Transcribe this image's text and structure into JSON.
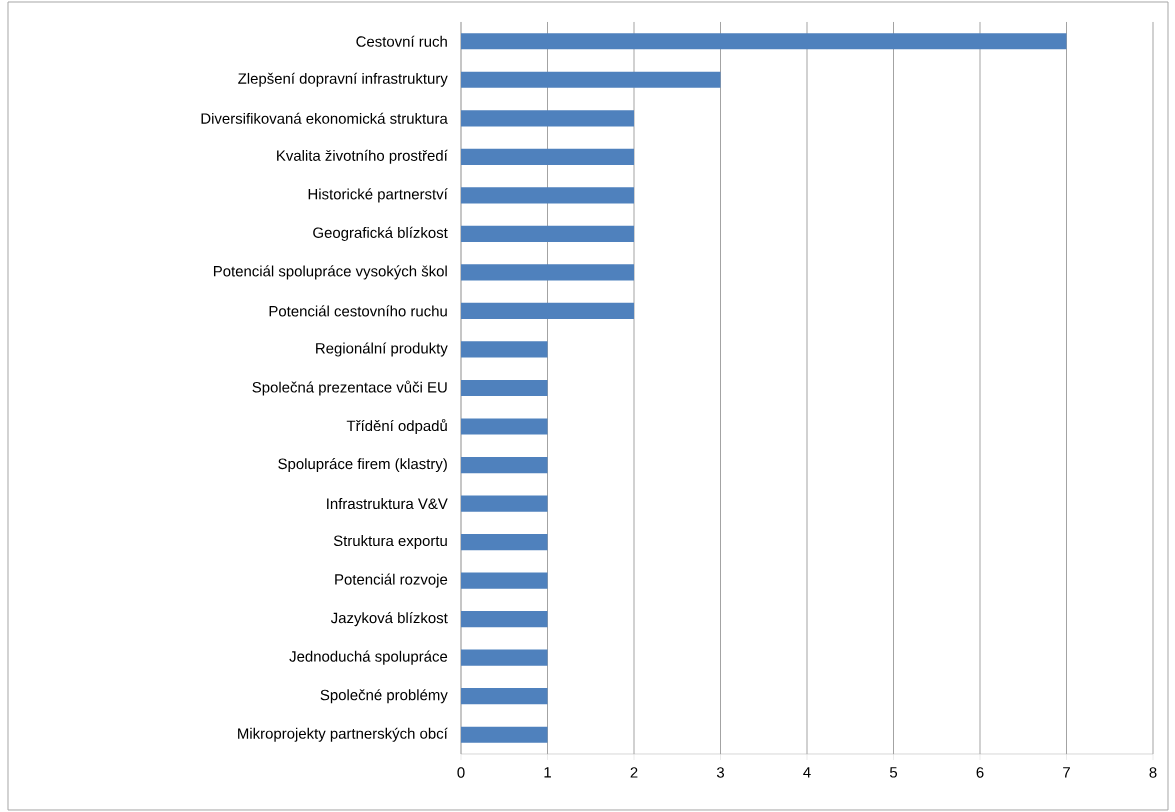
{
  "chart_data": {
    "type": "bar",
    "orientation": "horizontal",
    "categories": [
      "Cestovní ruch",
      "Zlepšení dopravní infrastruktury",
      "Diversifikovaná ekonomická struktura",
      "Kvalita životního prostředí",
      "Historické partnerství",
      "Geografická blízkost",
      "Potenciál spolupráce vysokých škol",
      "Potenciál cestovního ruchu",
      "Regionální produkty",
      "Společná prezentace vůči EU",
      "Třídění odpadů",
      "Spolupráce firem (klastry)",
      "Infrastruktura V&V",
      "Struktura exportu",
      "Potenciál rozvoje",
      "Jazyková blízkost",
      "Jednoduchá spolupráce",
      "Společné problémy",
      "Mikroprojekty partnerských obcí"
    ],
    "values": [
      7,
      3,
      2,
      2,
      2,
      2,
      2,
      2,
      1,
      1,
      1,
      1,
      1,
      1,
      1,
      1,
      1,
      1,
      1
    ],
    "color": "#4f81bd",
    "xlim": [
      0,
      8
    ],
    "xticks": [
      0,
      1,
      2,
      3,
      4,
      5,
      6,
      7,
      8
    ],
    "grid": "x"
  }
}
